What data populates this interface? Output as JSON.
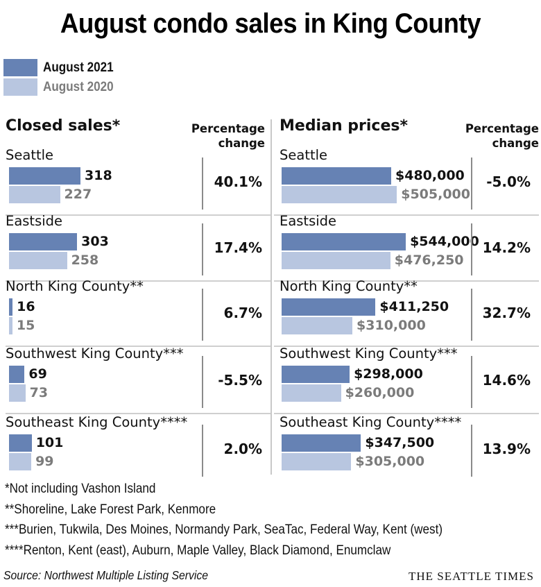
{
  "title": "August condo sales in King County",
  "legend": [
    {
      "label": "August 2021",
      "color": "#6682b4",
      "text_color": "#111111"
    },
    {
      "label": "August 2020",
      "color": "#b8c6e0",
      "text_color": "#7b7b7b"
    }
  ],
  "panels": {
    "closed_sales": {
      "title": "Closed sales*",
      "pct_header_line1": "Percentage",
      "pct_header_line2": "change"
    },
    "median_prices": {
      "title": "Median prices*",
      "pct_header_line1": "Percentage",
      "pct_header_line2": "change"
    }
  },
  "chart_data": [
    {
      "type": "bar",
      "title": "Closed sales*",
      "categories": [
        "Seattle",
        "Eastside",
        "North King County**",
        "Southwest King County***",
        "Southeast King County****"
      ],
      "series": [
        {
          "name": "August 2021",
          "values": [
            318,
            303,
            16,
            69,
            101
          ],
          "labels": [
            "318",
            "303",
            "16",
            "69",
            "101"
          ]
        },
        {
          "name": "August 2020",
          "values": [
            227,
            258,
            15,
            73,
            99
          ],
          "labels": [
            "227",
            "258",
            "15",
            "73",
            "99"
          ]
        }
      ],
      "percentage_change": [
        "40.1%",
        "17.4%",
        "6.7%",
        "-5.5%",
        "2.0%"
      ],
      "orientation": "horizontal",
      "legend": "top-left"
    },
    {
      "type": "bar",
      "title": "Median prices*",
      "categories": [
        "Seattle",
        "Eastside",
        "North King County**",
        "Southwest King County***",
        "Southeast King County****"
      ],
      "series": [
        {
          "name": "August 2021",
          "values": [
            480000,
            544000,
            411250,
            298000,
            347500
          ],
          "labels": [
            "$480,000",
            "$544,000",
            "$411,250",
            "$298,000",
            "$347,500"
          ]
        },
        {
          "name": "August 2020",
          "values": [
            505000,
            476250,
            310000,
            260000,
            305000
          ],
          "labels": [
            "$505,000",
            "$476,250",
            "$310,000",
            "$260,000",
            "$305,000"
          ]
        }
      ],
      "percentage_change": [
        "-5.0%",
        "14.2%",
        "32.7%",
        "14.6%",
        "13.9%"
      ],
      "orientation": "horizontal",
      "legend": "top-left"
    }
  ],
  "notes": [
    "*Not including Vashon Island",
    "**Shoreline, Lake Forest Park, Kenmore",
    "***Burien, Tukwila, Des Moines, Normandy Park, SeaTac, Federal Way, Kent (west)",
    "****Renton, Kent (east), Auburn, Maple Valley, Black Diamond, Enumclaw"
  ],
  "source": "Source: Northwest Multiple Listing Service",
  "brand": "THE SEATTLE TIMES"
}
